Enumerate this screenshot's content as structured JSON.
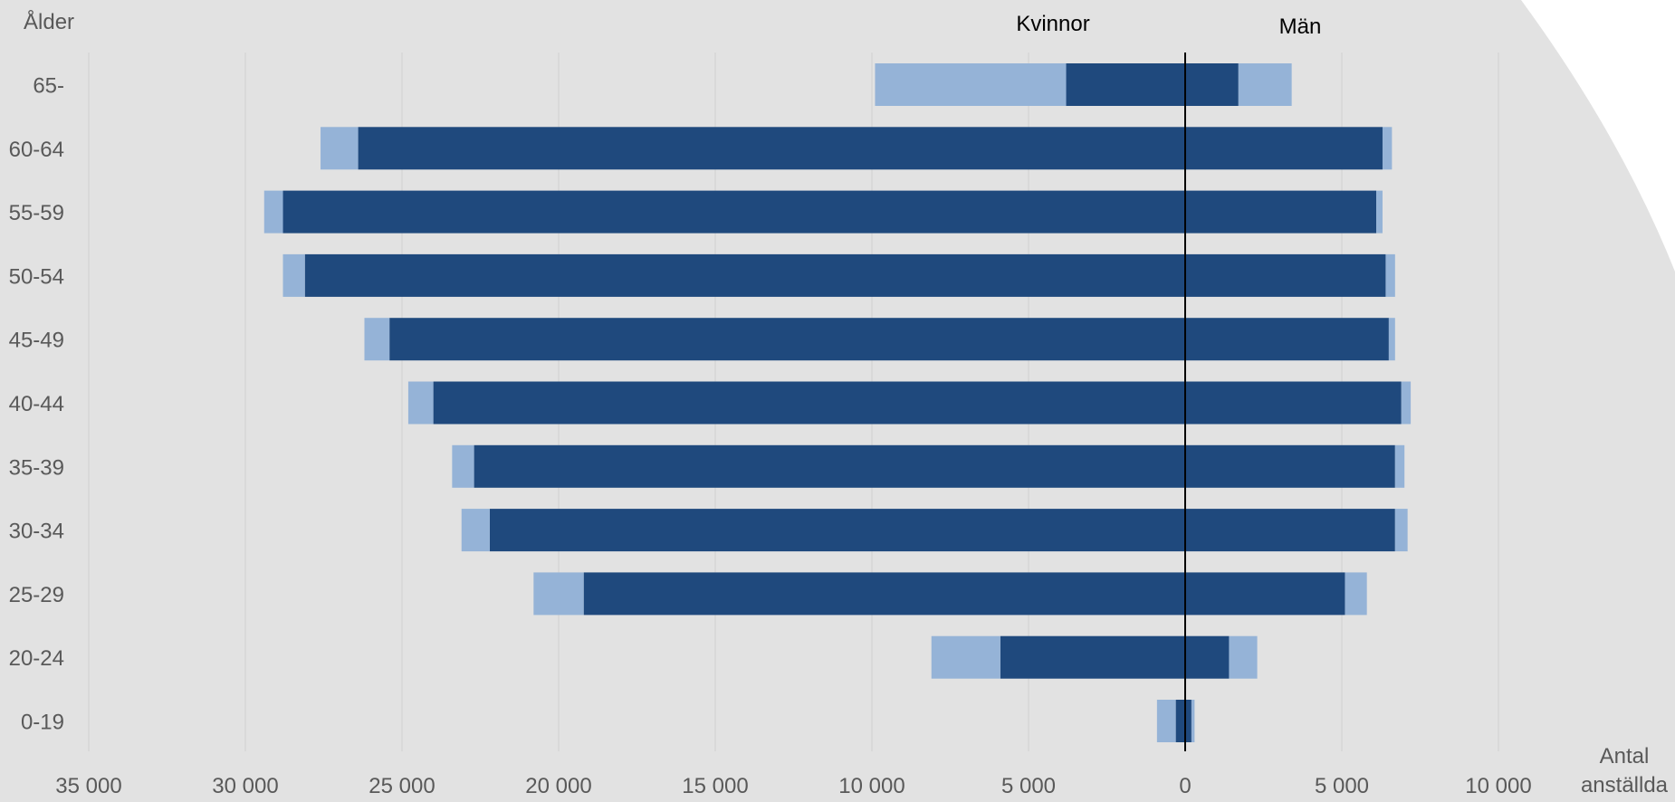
{
  "chart_data": {
    "type": "bar",
    "orientation": "horizontal-population-pyramid",
    "y_axis_title": "Ålder",
    "x_axis_title_line1": "Antal",
    "x_axis_title_line2": "anställda",
    "left_group_label": "Kvinnor",
    "right_group_label": "Män",
    "categories": [
      "65-",
      "60-64",
      "55-59",
      "50-54",
      "45-49",
      "40-44",
      "35-39",
      "30-34",
      "25-29",
      "20-24",
      "0-19"
    ],
    "xlim": [
      -35000,
      10000
    ],
    "x_ticks": [
      {
        "value": -35000,
        "label": "35 000"
      },
      {
        "value": -30000,
        "label": "30 000"
      },
      {
        "value": -25000,
        "label": "25 000"
      },
      {
        "value": -20000,
        "label": "20 000"
      },
      {
        "value": -15000,
        "label": "15 000"
      },
      {
        "value": -10000,
        "label": "10 000"
      },
      {
        "value": -5000,
        "label": "5 000"
      },
      {
        "value": 0,
        "label": "0"
      },
      {
        "value": 5000,
        "label": "5 000"
      },
      {
        "value": 10000,
        "label": "10 000"
      }
    ],
    "grid": true,
    "colors": {
      "dark": "#1f497d",
      "light": "#95b3d7",
      "background": "#e2e2e2",
      "gridline": "#d0d0d0",
      "axis": "#000000",
      "text": "#595959"
    },
    "series": [
      {
        "side": "women",
        "shade": "dark",
        "values": [
          3800,
          26400,
          28800,
          28100,
          25400,
          24000,
          22700,
          22200,
          19200,
          5900,
          300
        ]
      },
      {
        "side": "women",
        "shade": "light",
        "values": [
          6100,
          1200,
          600,
          700,
          800,
          800,
          700,
          900,
          1600,
          2200,
          600
        ]
      },
      {
        "side": "men",
        "shade": "dark",
        "values": [
          1700,
          6300,
          6100,
          6400,
          6500,
          6900,
          6700,
          6700,
          5100,
          1400,
          200
        ]
      },
      {
        "side": "men",
        "shade": "light",
        "values": [
          1700,
          300,
          200,
          300,
          200,
          300,
          300,
          400,
          700,
          900,
          100
        ]
      }
    ]
  }
}
